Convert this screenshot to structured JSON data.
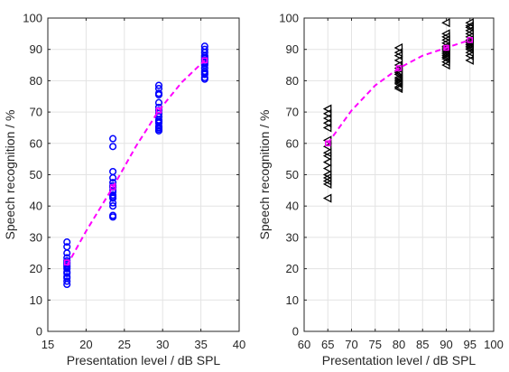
{
  "chart_data": [
    {
      "type": "scatter",
      "title": "",
      "xlabel": "Presentation level / dB SPL",
      "ylabel": "Speech recognition / %",
      "xlim": [
        15,
        40
      ],
      "ylim": [
        0,
        100
      ],
      "xticks": [
        "15",
        "20",
        "25",
        "30",
        "35",
        "40"
      ],
      "yticks": [
        "0",
        "10",
        "20",
        "30",
        "40",
        "50",
        "60",
        "70",
        "80",
        "90",
        "100"
      ],
      "grid": true,
      "legend": "none",
      "series": [
        {
          "marker": "circle",
          "color": "#0000ff",
          "x": [
            17.5,
            17.5,
            17.5,
            17.5,
            17.5,
            17.5,
            17.5,
            17.5,
            17.5,
            17.5,
            17.5,
            17.5,
            17.5,
            17.5,
            17.5,
            17.5,
            23.5,
            23.5,
            23.5,
            23.5,
            23.5,
            23.5,
            23.5,
            23.5,
            23.5,
            23.5,
            23.5,
            23.5,
            23.5,
            23.5,
            23.5,
            23.5,
            29.5,
            29.5,
            29.5,
            29.5,
            29.5,
            29.5,
            29.5,
            29.5,
            29.5,
            29.5,
            29.5,
            29.5,
            29.5,
            29.5,
            29.5,
            29.5,
            35.5,
            35.5,
            35.5,
            35.5,
            35.5,
            35.5,
            35.5,
            35.5,
            35.5,
            35.5,
            35.5,
            35.5,
            35.5,
            35.5,
            35.5,
            35.5
          ],
          "y": [
            28.5,
            27,
            25,
            23.5,
            22.5,
            22,
            21.5,
            21,
            20.5,
            20,
            19,
            18.5,
            17.5,
            17,
            16,
            15,
            61.5,
            59,
            51,
            49,
            47.5,
            46.5,
            46,
            45,
            44.5,
            43.5,
            43,
            42.5,
            41,
            40,
            37,
            36.5,
            78.5,
            77.5,
            76,
            75.5,
            73,
            71.5,
            70.5,
            69.5,
            68.5,
            67.5,
            67,
            66.5,
            65.5,
            65,
            64.5,
            64,
            91,
            90,
            89,
            88,
            87.5,
            87,
            86.5,
            86,
            85.5,
            85,
            84,
            83,
            82.5,
            82,
            81,
            80.5
          ]
        },
        {
          "marker": "square",
          "color": "#ff00ff",
          "x": [
            17.5,
            23.5,
            29.5,
            35.5
          ],
          "y": [
            22,
            46,
            70.5,
            86.5
          ]
        },
        {
          "marker": "none",
          "line": "dashed",
          "color": "#ff00ff",
          "x": [
            17.5,
            20,
            23.5,
            26.5,
            29.5,
            32.5,
            35.5
          ],
          "y": [
            21,
            32,
            46,
            59,
            70.5,
            79.5,
            86.5
          ]
        }
      ]
    },
    {
      "type": "scatter",
      "title": "",
      "xlabel": "Presentation level / dB SPL",
      "ylabel": "Speech recognition / %",
      "xlim": [
        60,
        100
      ],
      "ylim": [
        0,
        100
      ],
      "xticks": [
        "60",
        "65",
        "70",
        "75",
        "80",
        "85",
        "90",
        "95",
        "100"
      ],
      "yticks": [
        "0",
        "10",
        "20",
        "30",
        "40",
        "50",
        "60",
        "70",
        "80",
        "90",
        "100"
      ],
      "grid": true,
      "legend": "none",
      "series": [
        {
          "marker": "triangle-left",
          "color": "#000000",
          "x": [
            65,
            65,
            65,
            65,
            65,
            65,
            65,
            65,
            65,
            65,
            65,
            65,
            65,
            65,
            65,
            65,
            80,
            80,
            80,
            80,
            80,
            80,
            80,
            80,
            80,
            80,
            80,
            80,
            80,
            80,
            80,
            80,
            90,
            90,
            90,
            90,
            90,
            90,
            90,
            90,
            90,
            90,
            90,
            90,
            90,
            90,
            90,
            90,
            95,
            95,
            95,
            95,
            95,
            95,
            95,
            95,
            95,
            95,
            95,
            95,
            95,
            95,
            95,
            95
          ],
          "y": [
            71,
            69.5,
            68,
            66.5,
            65,
            61,
            59,
            57,
            56,
            54,
            52,
            50,
            49,
            48,
            47,
            42.5,
            90.5,
            89,
            88,
            86.5,
            85,
            84,
            83,
            82.5,
            82,
            81,
            80.5,
            80,
            79.5,
            79,
            78,
            77.5,
            98.5,
            95,
            94,
            93,
            92,
            91,
            90.5,
            90,
            89.5,
            89,
            88.5,
            88,
            87.5,
            87,
            86,
            85,
            98.5,
            97.5,
            97,
            96,
            95,
            94,
            93,
            92.5,
            92,
            91.5,
            91,
            90.5,
            90,
            89,
            88,
            86.5
          ]
        },
        {
          "marker": "square",
          "color": "#ff00ff",
          "x": [
            65,
            80,
            90,
            95
          ],
          "y": [
            60,
            84,
            90.5,
            93
          ]
        },
        {
          "marker": "none",
          "line": "dashed",
          "color": "#ff00ff",
          "x": [
            65,
            70,
            75,
            80,
            85,
            90,
            95
          ],
          "y": [
            60,
            70.5,
            78.5,
            84,
            88,
            90.5,
            93
          ]
        }
      ]
    }
  ]
}
